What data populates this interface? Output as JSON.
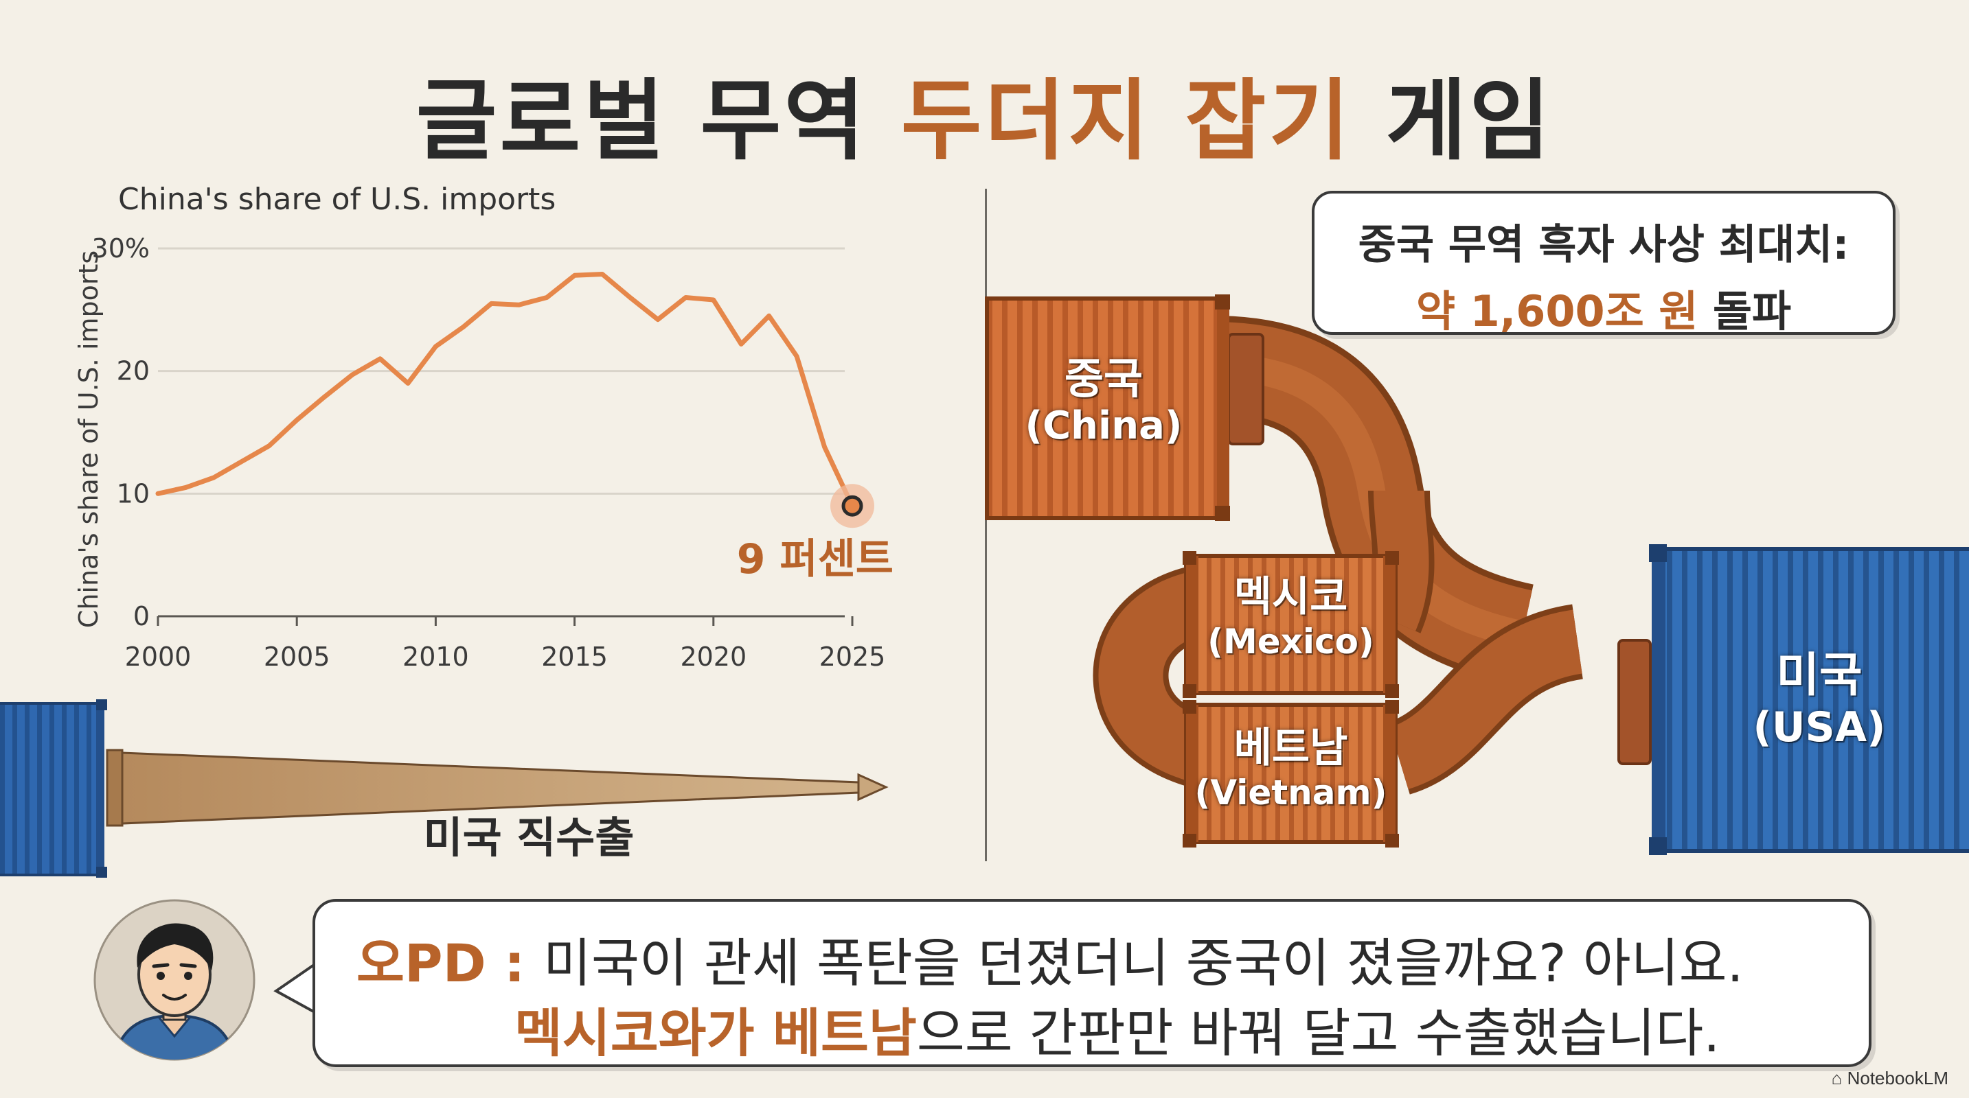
{
  "title": {
    "part1": "글로벌 무역 ",
    "accent": "두더지 잡기",
    "part2": " 게임"
  },
  "chart_data": {
    "type": "line",
    "title": "China's share of U.S. imports",
    "ylabel": "China's share of U.S. imports",
    "xlabel": "",
    "ylim": [
      0,
      30
    ],
    "xlim": [
      2000,
      2025
    ],
    "yticks": [
      0,
      10,
      20,
      30
    ],
    "ytick_labels": [
      "0",
      "10",
      "20",
      "30%"
    ],
    "xticks": [
      2000,
      2005,
      2010,
      2015,
      2020,
      2025
    ],
    "grid": true,
    "series": [
      {
        "x": [
          2000,
          2001,
          2002,
          2003,
          2004,
          2005,
          2006,
          2007,
          2008,
          2009,
          2010,
          2011,
          2012,
          2013,
          2014,
          2015,
          2016,
          2017,
          2018,
          2019,
          2020,
          2021,
          2022,
          2023,
          2024,
          2025
        ],
        "values": [
          10.0,
          10.5,
          11.3,
          12.6,
          13.9,
          16.0,
          17.9,
          19.7,
          21.0,
          19.0,
          22.0,
          23.6,
          25.5,
          25.4,
          26.0,
          27.8,
          27.9,
          26.0,
          24.2,
          26.0,
          25.8,
          22.2,
          24.5,
          21.2,
          13.8,
          9.0
        ]
      }
    ],
    "annotation": {
      "x": 2025,
      "y": 9,
      "label": "9 퍼센트"
    },
    "highlight_color": "#b8632a",
    "line_color": "#e6874a"
  },
  "direct_exports": {
    "label": "미국 직수출"
  },
  "containers": {
    "china": {
      "ko": "중국",
      "en": "(China)"
    },
    "mexico": {
      "ko": "멕시코",
      "en": "(Mexico)"
    },
    "vietnam": {
      "ko": "베트남",
      "en": "(Vietnam)"
    },
    "usa": {
      "ko": "미국",
      "en": "(USA)"
    }
  },
  "callout": {
    "line1": "중국 무역 흑자 사상 최대치:",
    "line2_highlight": "약 1,600조 원",
    "line2_rest": " 돌파"
  },
  "speech": {
    "speaker": "오PD : ",
    "line1": "미국이 관세 폭탄을 던졌더니 중국이 졌을까요? 아니요.",
    "line2_highlight": "멕시코와가 베트남",
    "line2_rest": "으로 간판만 바꿔 달고 수출했습니다."
  },
  "colors": {
    "accent": "#b8632a",
    "orange_container": "#d5733a",
    "blue_container": "#2f68b0",
    "pipe": "#b25e2c",
    "background": "#f4f0e7"
  },
  "watermark": "NotebookLM"
}
